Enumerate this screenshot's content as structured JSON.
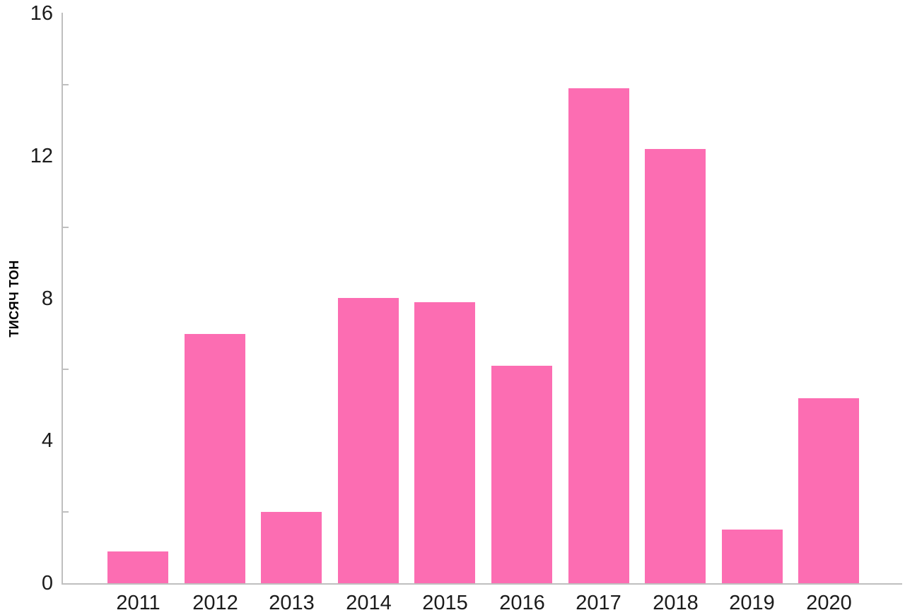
{
  "chart_data": {
    "type": "bar",
    "title": "",
    "xlabel": "",
    "ylabel": "ТИСЯЧ ТОН",
    "categories": [
      "2011",
      "2012",
      "2013",
      "2014",
      "2015",
      "2016",
      "2017",
      "2018",
      "2019",
      "2020"
    ],
    "values": [
      0.9,
      7.0,
      2.0,
      8.0,
      7.9,
      6.1,
      13.9,
      12.2,
      1.5,
      5.2
    ],
    "ylim": [
      0,
      16
    ],
    "y_major_ticks": [
      0,
      4,
      8,
      12,
      16
    ],
    "y_minor_ticks": [
      2,
      6,
      10,
      14
    ],
    "grid": "off",
    "legend": "none",
    "colors": {
      "bar": "#fc6db2",
      "axis": "#bfbfbf",
      "text": "#1b1b1b",
      "background": "#ffffff"
    }
  }
}
